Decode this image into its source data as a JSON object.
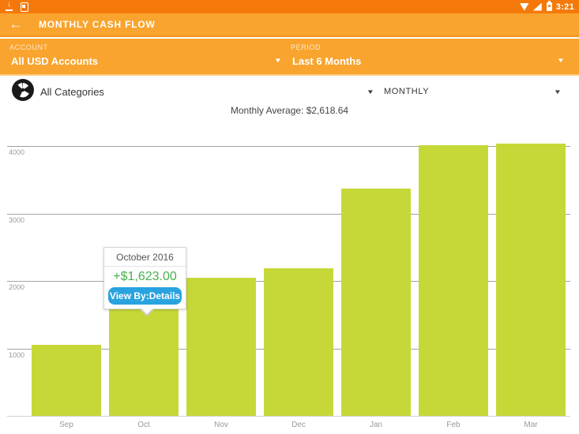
{
  "status_bar": {
    "time": "3:21",
    "icons_left": [
      "download-icon",
      "clipboard-icon"
    ],
    "icons_right": [
      "wifi-icon",
      "signal-icon",
      "battery-icon"
    ]
  },
  "app_bar": {
    "back_icon": "←",
    "title": "MONTHLY CASH FLOW"
  },
  "filters": {
    "account_label": "ACCOUNT",
    "account_value": "All USD Accounts",
    "period_label": "PERIOD",
    "period_value": "Last 6 Months",
    "dropdown_arrow": "▼"
  },
  "category_bar": {
    "categories_value": "All Categories",
    "interval_value": "MONTHLY",
    "dropdown_arrow": "▼"
  },
  "summary": {
    "monthly_average": "Monthly Average: $2,618.64"
  },
  "tooltip": {
    "title": "October 2016",
    "amount": "+$1,623.00",
    "button_label": "View By:Details",
    "amount_color": "#47af4c",
    "button_color": "#29a3e0"
  },
  "chart_data": {
    "type": "bar",
    "title": "Monthly Cash Flow",
    "categories": [
      "Sep",
      "Oct",
      "Nov",
      "Dec",
      "Jan",
      "Feb",
      "Mar"
    ],
    "values": [
      1050,
      1623,
      2050,
      2190,
      3370,
      4010,
      4040
    ],
    "y_ticks": [
      1000,
      2000,
      3000,
      4000
    ],
    "ylim": [
      0,
      4200
    ],
    "xlabel": "",
    "ylabel": "",
    "grid": true,
    "legend": "none",
    "bar_color": "#c6d837",
    "selected_bar": {
      "category": "Oct",
      "label": "October 2016",
      "value": 1623
    }
  },
  "colors": {
    "status_bar": "#f5790a",
    "app_bar": "#f9a42e",
    "panel_divider": "#f0941c",
    "panel_bottom_highlight": "#fbca81",
    "bar_fill": "#c6d837",
    "gridline": "#a3a3a3",
    "axis_line": "#d2d2d2"
  }
}
